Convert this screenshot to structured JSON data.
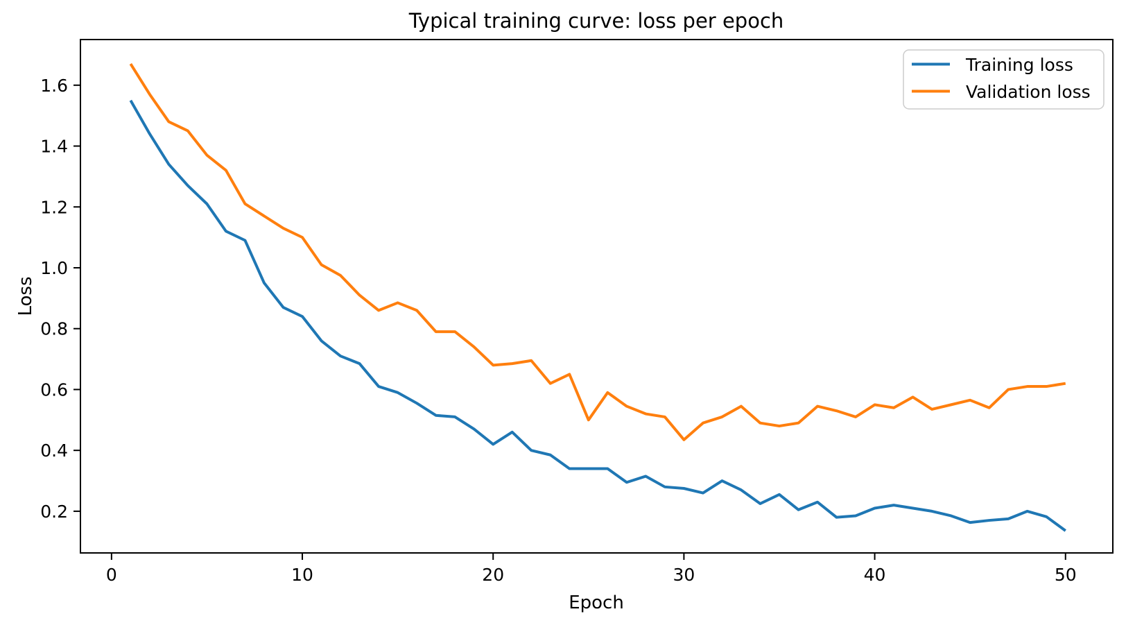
{
  "chart_data": {
    "type": "line",
    "title": "Typical training curve: loss per epoch",
    "xlabel": "Epoch",
    "ylabel": "Loss",
    "grid": false,
    "legend_position": "upper right",
    "xlim": [
      -1.63,
      52.48
    ],
    "ylim": [
      0.063,
      1.75
    ],
    "x": [
      1,
      2,
      3,
      4,
      5,
      6,
      7,
      8,
      9,
      10,
      11,
      12,
      13,
      14,
      15,
      16,
      17,
      18,
      19,
      20,
      21,
      22,
      23,
      24,
      25,
      26,
      27,
      28,
      29,
      30,
      31,
      32,
      33,
      34,
      35,
      36,
      37,
      38,
      39,
      40,
      41,
      42,
      43,
      44,
      45,
      46,
      47,
      48,
      49,
      50
    ],
    "series": [
      {
        "name": "Training loss",
        "color": "#1f77b4",
        "values": [
          1.55,
          1.44,
          1.34,
          1.27,
          1.21,
          1.12,
          1.09,
          0.95,
          0.87,
          0.84,
          0.76,
          0.71,
          0.685,
          0.61,
          0.59,
          0.555,
          0.515,
          0.51,
          0.47,
          0.42,
          0.46,
          0.4,
          0.385,
          0.34,
          0.34,
          0.34,
          0.295,
          0.315,
          0.28,
          0.275,
          0.26,
          0.3,
          0.27,
          0.225,
          0.255,
          0.205,
          0.23,
          0.18,
          0.185,
          0.21,
          0.22,
          0.21,
          0.2,
          0.185,
          0.163,
          0.17,
          0.175,
          0.2,
          0.182,
          0.136
        ]
      },
      {
        "name": "Validation loss",
        "color": "#ff7f0e",
        "values": [
          1.67,
          1.57,
          1.48,
          1.45,
          1.37,
          1.32,
          1.21,
          1.17,
          1.13,
          1.1,
          1.01,
          0.975,
          0.91,
          0.86,
          0.885,
          0.86,
          0.79,
          0.79,
          0.74,
          0.68,
          0.685,
          0.695,
          0.62,
          0.65,
          0.5,
          0.59,
          0.545,
          0.52,
          0.51,
          0.435,
          0.49,
          0.51,
          0.545,
          0.49,
          0.48,
          0.49,
          0.545,
          0.53,
          0.51,
          0.55,
          0.54,
          0.575,
          0.535,
          0.55,
          0.565,
          0.54,
          0.6,
          0.61,
          0.61,
          0.62
        ]
      }
    ],
    "xticks": [
      {
        "value": 0,
        "label": "0"
      },
      {
        "value": 10,
        "label": "10"
      },
      {
        "value": 20,
        "label": "20"
      },
      {
        "value": 30,
        "label": "30"
      },
      {
        "value": 40,
        "label": "40"
      },
      {
        "value": 50,
        "label": "50"
      }
    ],
    "yticks": [
      {
        "value": 0.2,
        "label": "0.2"
      },
      {
        "value": 0.4,
        "label": "0.4"
      },
      {
        "value": 0.6,
        "label": "0.6"
      },
      {
        "value": 0.8,
        "label": "0.8"
      },
      {
        "value": 1.0,
        "label": "1.0"
      },
      {
        "value": 1.2,
        "label": "1.2"
      },
      {
        "value": 1.4,
        "label": "1.4"
      },
      {
        "value": 1.6,
        "label": "1.6"
      }
    ],
    "legend": {
      "items": [
        {
          "label": "Training loss",
          "color": "#1f77b4"
        },
        {
          "label": "Validation loss",
          "color": "#ff7f0e"
        }
      ]
    }
  }
}
